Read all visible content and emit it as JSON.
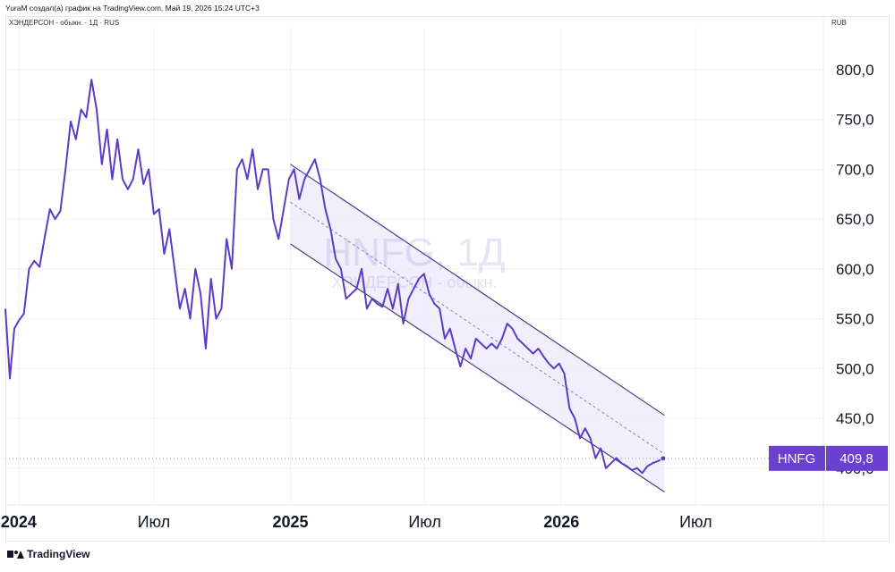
{
  "header": {
    "attribution": "YuraM создал(а) график на TradingView.com, Май 19, 2026 15:24 UTC+3",
    "instrument_line": "ХЭНДЕРСОН - обыкн. · 1Д · RUS",
    "currency": "RUB"
  },
  "watermark": {
    "title": "HNFG, 1Д",
    "subtitle": "ХЭНДЕРСОН - обыкн."
  },
  "price_label": {
    "ticker": "HNFG",
    "value": "409,8"
  },
  "branding": {
    "logo_text": "TradingView"
  },
  "colors": {
    "line": "#5b3cc4",
    "channel": "#4a3a8c",
    "channel_fill": "#ede9fb",
    "label_bg": "#6a3fd1",
    "last_price_dots": "#9aa0ab"
  },
  "chart_data": {
    "type": "line",
    "title": "",
    "xlabel": "",
    "ylabel": "",
    "ylim": [
      363,
      843
    ],
    "xlim": [
      "2023-12-14",
      "2026-12-20"
    ],
    "y_ticks": [
      400,
      450,
      500,
      550,
      600,
      650,
      700,
      750,
      800
    ],
    "y_tick_labels": [
      "400,0",
      "450,0",
      "500,0",
      "550,0",
      "600,0",
      "650,0",
      "700,0",
      "750,0",
      "800,0"
    ],
    "x_ticks": [
      {
        "date": "2024-01-01",
        "label": "2024",
        "bold": true
      },
      {
        "date": "2024-07-01",
        "label": "Июл",
        "bold": false
      },
      {
        "date": "2025-01-01",
        "label": "2025",
        "bold": true
      },
      {
        "date": "2025-07-01",
        "label": "Июл",
        "bold": false
      },
      {
        "date": "2026-01-01",
        "label": "2026",
        "bold": true
      },
      {
        "date": "2026-07-01",
        "label": "Июл",
        "bold": false
      }
    ],
    "last_value": 409.8,
    "series": [
      {
        "x": [
          "2023-12-14",
          "2023-12-20",
          "2023-12-26",
          "2024-01-01",
          "2024-01-08",
          "2024-01-15",
          "2024-01-22",
          "2024-01-29",
          "2024-02-05",
          "2024-02-12",
          "2024-02-19",
          "2024-02-26",
          "2024-03-04",
          "2024-03-11",
          "2024-03-18",
          "2024-03-25",
          "2024-04-01",
          "2024-04-08",
          "2024-04-15",
          "2024-04-22",
          "2024-04-29",
          "2024-05-06",
          "2024-05-13",
          "2024-05-20",
          "2024-05-27",
          "2024-06-03",
          "2024-06-10",
          "2024-06-17",
          "2024-06-24",
          "2024-07-01",
          "2024-07-08",
          "2024-07-15",
          "2024-07-22",
          "2024-07-29",
          "2024-08-05",
          "2024-08-12",
          "2024-08-19",
          "2024-08-26",
          "2024-09-02",
          "2024-09-09",
          "2024-09-16",
          "2024-09-23",
          "2024-09-30",
          "2024-10-07",
          "2024-10-14",
          "2024-10-21",
          "2024-10-28",
          "2024-11-04",
          "2024-11-11",
          "2024-11-18",
          "2024-11-25",
          "2024-12-02",
          "2024-12-09",
          "2024-12-16",
          "2024-12-23",
          "2024-12-30",
          "2025-01-06",
          "2025-01-13",
          "2025-01-20",
          "2025-01-27",
          "2025-02-03",
          "2025-02-10",
          "2025-02-17",
          "2025-02-24",
          "2025-03-03",
          "2025-03-10",
          "2025-03-17",
          "2025-03-24",
          "2025-03-31",
          "2025-04-07",
          "2025-04-14",
          "2025-04-21",
          "2025-04-28",
          "2025-05-05",
          "2025-05-12",
          "2025-05-19",
          "2025-05-26",
          "2025-06-02",
          "2025-06-09",
          "2025-06-16",
          "2025-06-23",
          "2025-06-30",
          "2025-07-07",
          "2025-07-14",
          "2025-07-21",
          "2025-07-28",
          "2025-08-04",
          "2025-08-11",
          "2025-08-18",
          "2025-08-25",
          "2025-09-01",
          "2025-09-08",
          "2025-09-15",
          "2025-09-22",
          "2025-09-29",
          "2025-10-06",
          "2025-10-13",
          "2025-10-20",
          "2025-10-27",
          "2025-11-03",
          "2025-11-10",
          "2025-11-17",
          "2025-11-24",
          "2025-12-01",
          "2025-12-08",
          "2025-12-15",
          "2025-12-22",
          "2025-12-29",
          "2026-01-05",
          "2026-01-12",
          "2026-01-19",
          "2026-01-26",
          "2026-02-02",
          "2026-02-09",
          "2026-02-16",
          "2026-02-23",
          "2026-03-02",
          "2026-03-09",
          "2026-03-16",
          "2026-03-23",
          "2026-03-30",
          "2026-04-06",
          "2026-04-13",
          "2026-04-20",
          "2026-04-27",
          "2026-05-04",
          "2026-05-11",
          "2026-05-18"
        ],
        "y": [
          560,
          490,
          540,
          548,
          555,
          600,
          608,
          602,
          632,
          660,
          650,
          658,
          700,
          748,
          730,
          760,
          752,
          790,
          760,
          705,
          740,
          690,
          730,
          690,
          680,
          690,
          720,
          685,
          700,
          655,
          660,
          615,
          640,
          600,
          560,
          580,
          550,
          600,
          575,
          520,
          590,
          550,
          560,
          630,
          600,
          700,
          710,
          690,
          720,
          680,
          700,
          700,
          650,
          630,
          660,
          690,
          700,
          670,
          690,
          700,
          710,
          690,
          660,
          640,
          610,
          600,
          570,
          575,
          580,
          600,
          560,
          570,
          565,
          562,
          580,
          560,
          585,
          545,
          570,
          580,
          590,
          595,
          575,
          565,
          560,
          530,
          540,
          520,
          502,
          520,
          510,
          530,
          525,
          520,
          525,
          520,
          530,
          545,
          540,
          530,
          525,
          520,
          515,
          520,
          512,
          505,
          500,
          505,
          495,
          460,
          450,
          430,
          440,
          430,
          410,
          420,
          400,
          405,
          410,
          405,
          402,
          398,
          400,
          395,
          402,
          405,
          407,
          409.8
        ]
      }
    ],
    "regression_channel": {
      "start_date": "2025-01-01",
      "end_date": "2026-05-20",
      "upper": [
        705,
        453
      ],
      "middle": [
        667,
        414
      ],
      "lower": [
        625,
        376
      ]
    }
  }
}
